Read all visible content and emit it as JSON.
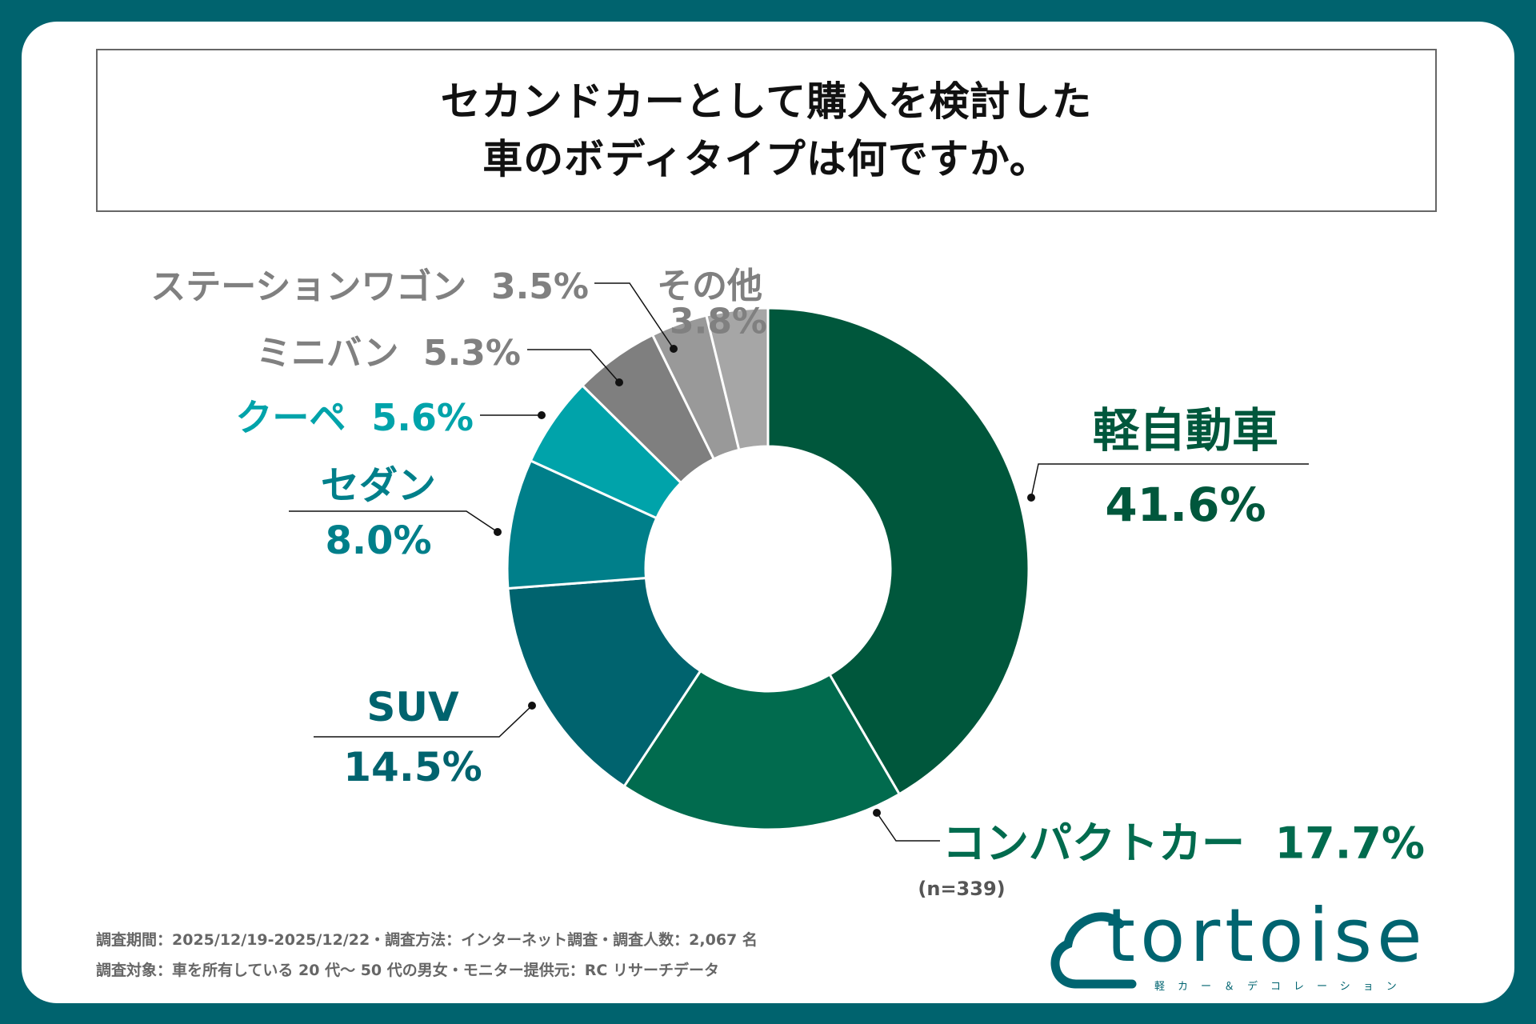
{
  "title": {
    "line1": "セカンドカーとして購入を検討した",
    "line2": "車のボディタイプは何ですか。"
  },
  "chart_data": {
    "type": "pie",
    "donut": true,
    "slices": [
      {
        "label": "軽自動車",
        "value": 41.6,
        "display": "41.6%",
        "color": "#00573c"
      },
      {
        "label": "コンパクトカー",
        "value": 17.7,
        "display": "17.7%",
        "color": "#016b4e"
      },
      {
        "label": "SUV",
        "value": 14.5,
        "display": "14.5%",
        "color": "#00636e"
      },
      {
        "label": "セダン",
        "value": 8.0,
        "display": "8.0%",
        "color": "#007f8a"
      },
      {
        "label": "クーペ",
        "value": 5.6,
        "display": "5.6%",
        "color": "#00a3aa"
      },
      {
        "label": "ミニバン",
        "value": 5.3,
        "display": "5.3%",
        "color": "#7f7f7f"
      },
      {
        "label": "ステーションワゴン",
        "value": 3.5,
        "display": "3.5%",
        "color": "#999999"
      },
      {
        "label": "その他",
        "value": 3.8,
        "display": "3.8%",
        "color": "#a6a6a6"
      }
    ],
    "label_colors": {
      "dark_green": "#00573c",
      "teal": "#00636e",
      "cyan": "#00a3aa",
      "mid_teal": "#007f8a",
      "gray": "#808080"
    },
    "n_note": "(n=339)"
  },
  "footer": {
    "line1": "調査期間：2025/12/19-2025/12/22・調査方法：インターネット調査・調査人数：2,067 名",
    "line2": "調査対象：車を所有している 20 代〜 50 代の男女・モニター提供元：RC リサーチデータ"
  },
  "logo": {
    "word": "tortoise",
    "sub": "軽カー＆デコレーション"
  }
}
